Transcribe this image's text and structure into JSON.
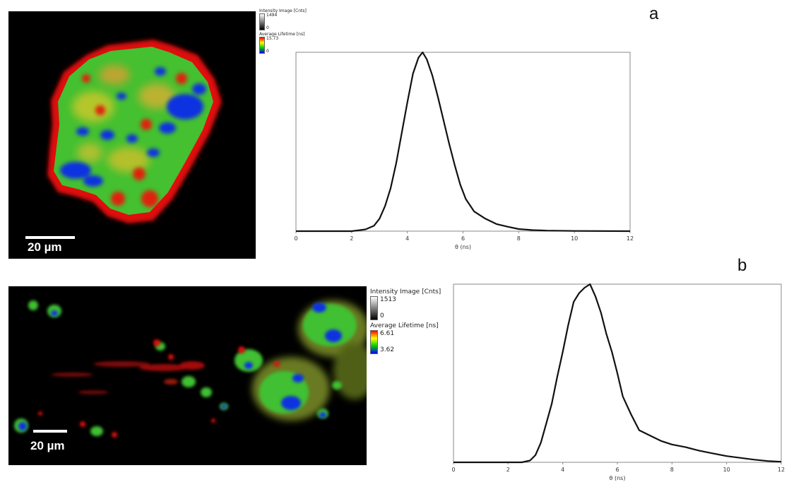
{
  "panels": [
    {
      "letter": "a",
      "scale_bar": "20 µm",
      "legend": {
        "intensity_title": "Intensity Image [Cnts]",
        "intensity_max": "1494",
        "intensity_min": "0",
        "lifetime_title": "Average Lifetime [ns]",
        "lifetime_max": "15.73",
        "lifetime_min": "0"
      }
    },
    {
      "letter": "b",
      "scale_bar": "20 µm",
      "legend": {
        "intensity_title": "Intensity Image [Cnts]",
        "intensity_max": "1513",
        "intensity_min": "0",
        "lifetime_title": "Average Lifetime [ns]",
        "lifetime_max": "6.61",
        "lifetime_min": "3.62"
      }
    }
  ],
  "colors": {
    "line": "#111111",
    "axis": "#888888",
    "lifetime_scale": [
      "#ff0000",
      "#ffff00",
      "#00cc00",
      "#0000ff"
    ]
  },
  "chart_data": [
    {
      "type": "line",
      "title": "",
      "xlabel": "θ (ns)",
      "ylabel": "",
      "xlim": [
        0,
        12
      ],
      "xticks": [
        "0",
        "2",
        "4",
        "6",
        "8",
        "10",
        "12"
      ],
      "grid": false,
      "series": [
        {
          "x": [
            0,
            2.0,
            2.5,
            2.8,
            3.0,
            3.2,
            3.4,
            3.6,
            3.8,
            4.0,
            4.2,
            4.4,
            4.55,
            4.7,
            4.9,
            5.1,
            5.3,
            5.5,
            5.7,
            5.9,
            6.1,
            6.4,
            6.8,
            7.2,
            7.6,
            8.0,
            8.5,
            9.0,
            10.0,
            12.0
          ],
          "y": [
            0,
            0,
            0.01,
            0.03,
            0.07,
            0.14,
            0.24,
            0.38,
            0.55,
            0.72,
            0.88,
            0.97,
            1.0,
            0.96,
            0.87,
            0.75,
            0.62,
            0.49,
            0.37,
            0.26,
            0.18,
            0.11,
            0.07,
            0.04,
            0.025,
            0.012,
            0.006,
            0.003,
            0.001,
            0
          ]
        }
      ]
    },
    {
      "type": "line",
      "title": "",
      "xlabel": "θ (ns)",
      "ylabel": "",
      "xlim": [
        0,
        12
      ],
      "xticks": [
        "0",
        "2",
        "4",
        "6",
        "8",
        "10",
        "12"
      ],
      "grid": false,
      "series": [
        {
          "x": [
            0,
            2.5,
            2.8,
            3.0,
            3.2,
            3.4,
            3.6,
            3.8,
            4.0,
            4.2,
            4.4,
            4.6,
            4.8,
            4.9,
            5.0,
            5.2,
            5.4,
            5.6,
            5.8,
            6.0,
            6.2,
            6.5,
            6.8,
            7.2,
            7.6,
            8.0,
            8.5,
            9.0,
            9.5,
            10.0,
            10.5,
            11.0,
            11.5,
            12.0
          ],
          "y": [
            0,
            0,
            0.01,
            0.04,
            0.11,
            0.22,
            0.33,
            0.48,
            0.62,
            0.77,
            0.9,
            0.95,
            0.98,
            0.99,
            1.0,
            0.93,
            0.84,
            0.72,
            0.62,
            0.5,
            0.37,
            0.27,
            0.18,
            0.15,
            0.12,
            0.1,
            0.085,
            0.065,
            0.05,
            0.035,
            0.025,
            0.015,
            0.007,
            0.003
          ]
        }
      ]
    }
  ]
}
